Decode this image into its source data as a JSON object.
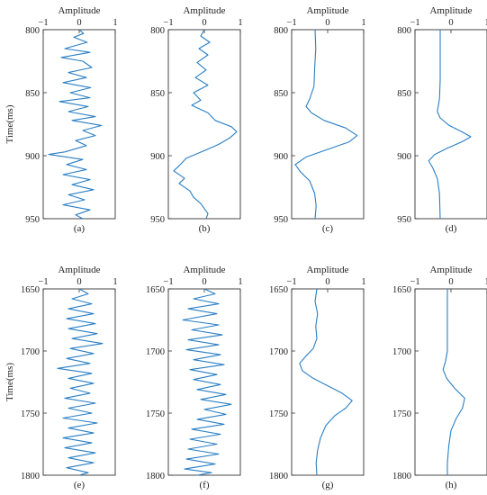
{
  "figure": {
    "accent_color": "#2a7fc4",
    "panels_meta": "8 seismic traces, amplitude vs time"
  },
  "chart_data": [
    {
      "type": "line",
      "label": "(a)",
      "title": "Amplitude",
      "ylabel": "Time(ms)",
      "xlim": [
        -1,
        1
      ],
      "ylim": [
        800,
        950
      ],
      "xticks": [
        -1,
        0,
        1
      ],
      "yticks": [
        800,
        850,
        900,
        950
      ],
      "series": [
        {
          "points": [
            [
              0.0,
              800
            ],
            [
              0.12,
              803
            ],
            [
              -0.15,
              806
            ],
            [
              0.22,
              810
            ],
            [
              -0.4,
              815
            ],
            [
              0.3,
              818
            ],
            [
              -0.5,
              822
            ],
            [
              0.1,
              825
            ],
            [
              0.35,
              830
            ],
            [
              -0.3,
              834
            ],
            [
              0.2,
              838
            ],
            [
              -0.45,
              842
            ],
            [
              0.32,
              846
            ],
            [
              -0.25,
              850
            ],
            [
              0.3,
              854
            ],
            [
              -0.55,
              857
            ],
            [
              0.25,
              861
            ],
            [
              -0.3,
              865
            ],
            [
              0.45,
              869
            ],
            [
              -0.2,
              872
            ],
            [
              0.62,
              876
            ],
            [
              0.1,
              880
            ],
            [
              0.45,
              884
            ],
            [
              -0.1,
              888
            ],
            [
              0.2,
              892
            ],
            [
              -0.4,
              897
            ],
            [
              -0.85,
              899
            ],
            [
              0.1,
              903
            ],
            [
              -0.35,
              907
            ],
            [
              0.2,
              911
            ],
            [
              -0.45,
              915
            ],
            [
              0.3,
              919
            ],
            [
              -0.2,
              923
            ],
            [
              0.4,
              927
            ],
            [
              -0.3,
              931
            ],
            [
              0.15,
              935
            ],
            [
              -0.45,
              939
            ],
            [
              0.3,
              943
            ],
            [
              -0.1,
              947
            ],
            [
              0.1,
              950
            ]
          ]
        }
      ]
    },
    {
      "type": "line",
      "label": "(b)",
      "title": "Amplitude",
      "ylabel": "",
      "xlim": [
        -1,
        1
      ],
      "ylim": [
        800,
        950
      ],
      "xticks": [
        -1,
        0,
        1
      ],
      "yticks": [
        800,
        850,
        900,
        950
      ],
      "series": [
        {
          "points": [
            [
              0.0,
              800
            ],
            [
              -0.1,
              805
            ],
            [
              0.15,
              810
            ],
            [
              -0.15,
              815
            ],
            [
              0.1,
              820
            ],
            [
              -0.2,
              826
            ],
            [
              0.05,
              832
            ],
            [
              -0.25,
              838
            ],
            [
              0.1,
              844
            ],
            [
              -0.3,
              850
            ],
            [
              -0.1,
              856
            ],
            [
              -0.35,
              860
            ],
            [
              0.1,
              866
            ],
            [
              0.3,
              872
            ],
            [
              0.75,
              877
            ],
            [
              0.9,
              881
            ],
            [
              0.7,
              886
            ],
            [
              0.4,
              891
            ],
            [
              0.0,
              896
            ],
            [
              -0.5,
              902
            ],
            [
              -0.7,
              908
            ],
            [
              -0.85,
              912
            ],
            [
              -0.55,
              918
            ],
            [
              -0.7,
              922
            ],
            [
              -0.4,
              928
            ],
            [
              -0.3,
              933
            ],
            [
              -0.1,
              938
            ],
            [
              0.0,
              942
            ],
            [
              0.1,
              946
            ],
            [
              0.05,
              950
            ]
          ]
        }
      ]
    },
    {
      "type": "line",
      "label": "(c)",
      "title": "Amplitude",
      "ylabel": "",
      "xlim": [
        -1,
        1
      ],
      "ylim": [
        800,
        950
      ],
      "xticks": [
        -1,
        0,
        1
      ],
      "yticks": [
        800,
        850,
        900,
        950
      ],
      "series": [
        {
          "points": [
            [
              -0.35,
              800
            ],
            [
              -0.33,
              815
            ],
            [
              -0.36,
              830
            ],
            [
              -0.38,
              845
            ],
            [
              -0.5,
              855
            ],
            [
              -0.6,
              861
            ],
            [
              -0.45,
              866
            ],
            [
              -0.1,
              872
            ],
            [
              0.5,
              878
            ],
            [
              0.82,
              884
            ],
            [
              0.6,
              889
            ],
            [
              0.0,
              895
            ],
            [
              -0.6,
              901
            ],
            [
              -0.9,
              907
            ],
            [
              -0.75,
              913
            ],
            [
              -0.5,
              920
            ],
            [
              -0.36,
              930
            ],
            [
              -0.32,
              940
            ],
            [
              -0.35,
              950
            ]
          ]
        }
      ]
    },
    {
      "type": "line",
      "label": "(d)",
      "title": "Amplitude",
      "ylabel": "",
      "xlim": [
        -1,
        1
      ],
      "ylim": [
        800,
        950
      ],
      "xticks": [
        -1,
        0,
        1
      ],
      "yticks": [
        800,
        850,
        900,
        950
      ],
      "series": [
        {
          "points": [
            [
              -0.3,
              800
            ],
            [
              -0.3,
              820
            ],
            [
              -0.3,
              840
            ],
            [
              -0.32,
              855
            ],
            [
              -0.38,
              865
            ],
            [
              -0.3,
              870
            ],
            [
              -0.05,
              876
            ],
            [
              0.3,
              881
            ],
            [
              0.55,
              885
            ],
            [
              0.3,
              889
            ],
            [
              -0.1,
              894
            ],
            [
              -0.45,
              899
            ],
            [
              -0.62,
              904
            ],
            [
              -0.5,
              910
            ],
            [
              -0.38,
              918
            ],
            [
              -0.32,
              930
            ],
            [
              -0.3,
              950
            ]
          ]
        }
      ]
    },
    {
      "type": "line",
      "label": "(e)",
      "title": "Amplitude",
      "ylabel": "Time(ms)",
      "xlim": [
        -1,
        1
      ],
      "ylim": [
        1650,
        1800
      ],
      "xticks": [
        -1,
        0,
        1
      ],
      "yticks": [
        1650,
        1700,
        1750,
        1800
      ],
      "series": [
        {
          "points": [
            [
              0.0,
              1650
            ],
            [
              0.25,
              1654
            ],
            [
              -0.2,
              1658
            ],
            [
              0.35,
              1662
            ],
            [
              -0.3,
              1666
            ],
            [
              0.4,
              1670
            ],
            [
              -0.35,
              1674
            ],
            [
              0.45,
              1678
            ],
            [
              -0.3,
              1682
            ],
            [
              0.5,
              1686
            ],
            [
              -0.2,
              1690
            ],
            [
              0.65,
              1694
            ],
            [
              -0.25,
              1698
            ],
            [
              0.4,
              1702
            ],
            [
              -0.35,
              1706
            ],
            [
              0.3,
              1710
            ],
            [
              -0.6,
              1714
            ],
            [
              0.35,
              1718
            ],
            [
              -0.3,
              1722
            ],
            [
              0.4,
              1726
            ],
            [
              -0.25,
              1730
            ],
            [
              0.3,
              1734
            ],
            [
              -0.4,
              1738
            ],
            [
              0.45,
              1742
            ],
            [
              -0.3,
              1746
            ],
            [
              0.35,
              1750
            ],
            [
              -0.45,
              1754
            ],
            [
              0.5,
              1758
            ],
            [
              -0.3,
              1762
            ],
            [
              0.4,
              1766
            ],
            [
              -0.45,
              1770
            ],
            [
              0.35,
              1774
            ],
            [
              -0.4,
              1778
            ],
            [
              0.45,
              1782
            ],
            [
              -0.3,
              1786
            ],
            [
              0.4,
              1790
            ],
            [
              -0.35,
              1794
            ],
            [
              0.25,
              1798
            ],
            [
              0.0,
              1800
            ]
          ]
        }
      ]
    },
    {
      "type": "line",
      "label": "(f)",
      "title": "Amplitude",
      "ylabel": "",
      "xlim": [
        -1,
        1
      ],
      "ylim": [
        1650,
        1800
      ],
      "xticks": [
        -1,
        0,
        1
      ],
      "yticks": [
        1650,
        1700,
        1750,
        1800
      ],
      "series": [
        {
          "points": [
            [
              0.0,
              1650
            ],
            [
              0.3,
              1654
            ],
            [
              -0.3,
              1658
            ],
            [
              0.4,
              1662
            ],
            [
              -0.45,
              1666
            ],
            [
              0.35,
              1670
            ],
            [
              -0.6,
              1675
            ],
            [
              0.4,
              1679
            ],
            [
              -0.35,
              1683
            ],
            [
              0.5,
              1687
            ],
            [
              -0.45,
              1691
            ],
            [
              0.4,
              1695
            ],
            [
              -0.5,
              1699
            ],
            [
              0.45,
              1703
            ],
            [
              -0.3,
              1707
            ],
            [
              0.55,
              1711
            ],
            [
              -0.4,
              1715
            ],
            [
              0.35,
              1719
            ],
            [
              -0.3,
              1723
            ],
            [
              0.45,
              1727
            ],
            [
              -0.2,
              1731
            ],
            [
              0.6,
              1735
            ],
            [
              -0.1,
              1739
            ],
            [
              0.75,
              1743
            ],
            [
              0.0,
              1747
            ],
            [
              0.6,
              1751
            ],
            [
              -0.2,
              1755
            ],
            [
              0.55,
              1759
            ],
            [
              -0.35,
              1763
            ],
            [
              0.45,
              1767
            ],
            [
              -0.4,
              1771
            ],
            [
              0.35,
              1775
            ],
            [
              -0.45,
              1779
            ],
            [
              0.4,
              1783
            ],
            [
              -0.5,
              1787
            ],
            [
              0.3,
              1791
            ],
            [
              -0.55,
              1795
            ],
            [
              0.2,
              1798
            ],
            [
              -0.2,
              1800
            ]
          ]
        }
      ]
    },
    {
      "type": "line",
      "label": "(g)",
      "title": "Amplitude",
      "ylabel": "",
      "xlim": [
        -1,
        1
      ],
      "ylim": [
        1650,
        1800
      ],
      "xticks": [
        -1,
        0,
        1
      ],
      "yticks": [
        1650,
        1700,
        1750,
        1800
      ],
      "series": [
        {
          "points": [
            [
              -0.3,
              1650
            ],
            [
              -0.35,
              1660
            ],
            [
              -0.28,
              1670
            ],
            [
              -0.33,
              1680
            ],
            [
              -0.3,
              1690
            ],
            [
              -0.4,
              1698
            ],
            [
              -0.6,
              1704
            ],
            [
              -0.78,
              1710
            ],
            [
              -0.7,
              1716
            ],
            [
              -0.4,
              1722
            ],
            [
              0.0,
              1728
            ],
            [
              0.4,
              1734
            ],
            [
              0.68,
              1740
            ],
            [
              0.5,
              1746
            ],
            [
              0.2,
              1752
            ],
            [
              -0.05,
              1760
            ],
            [
              -0.2,
              1770
            ],
            [
              -0.28,
              1780
            ],
            [
              -0.32,
              1790
            ],
            [
              -0.3,
              1800
            ]
          ]
        }
      ]
    },
    {
      "type": "line",
      "label": "(h)",
      "title": "Amplitude",
      "ylabel": "",
      "xlim": [
        -1,
        1
      ],
      "ylim": [
        1650,
        1800
      ],
      "xticks": [
        -1,
        0,
        1
      ],
      "yticks": [
        1650,
        1700,
        1750,
        1800
      ],
      "series": [
        {
          "points": [
            [
              -0.1,
              1650
            ],
            [
              -0.1,
              1680
            ],
            [
              -0.1,
              1700
            ],
            [
              -0.15,
              1708
            ],
            [
              -0.22,
              1715
            ],
            [
              -0.12,
              1722
            ],
            [
              0.1,
              1730
            ],
            [
              0.38,
              1738
            ],
            [
              0.32,
              1746
            ],
            [
              0.15,
              1754
            ],
            [
              0.0,
              1764
            ],
            [
              -0.06,
              1776
            ],
            [
              -0.1,
              1790
            ],
            [
              -0.1,
              1800
            ]
          ]
        }
      ]
    }
  ]
}
